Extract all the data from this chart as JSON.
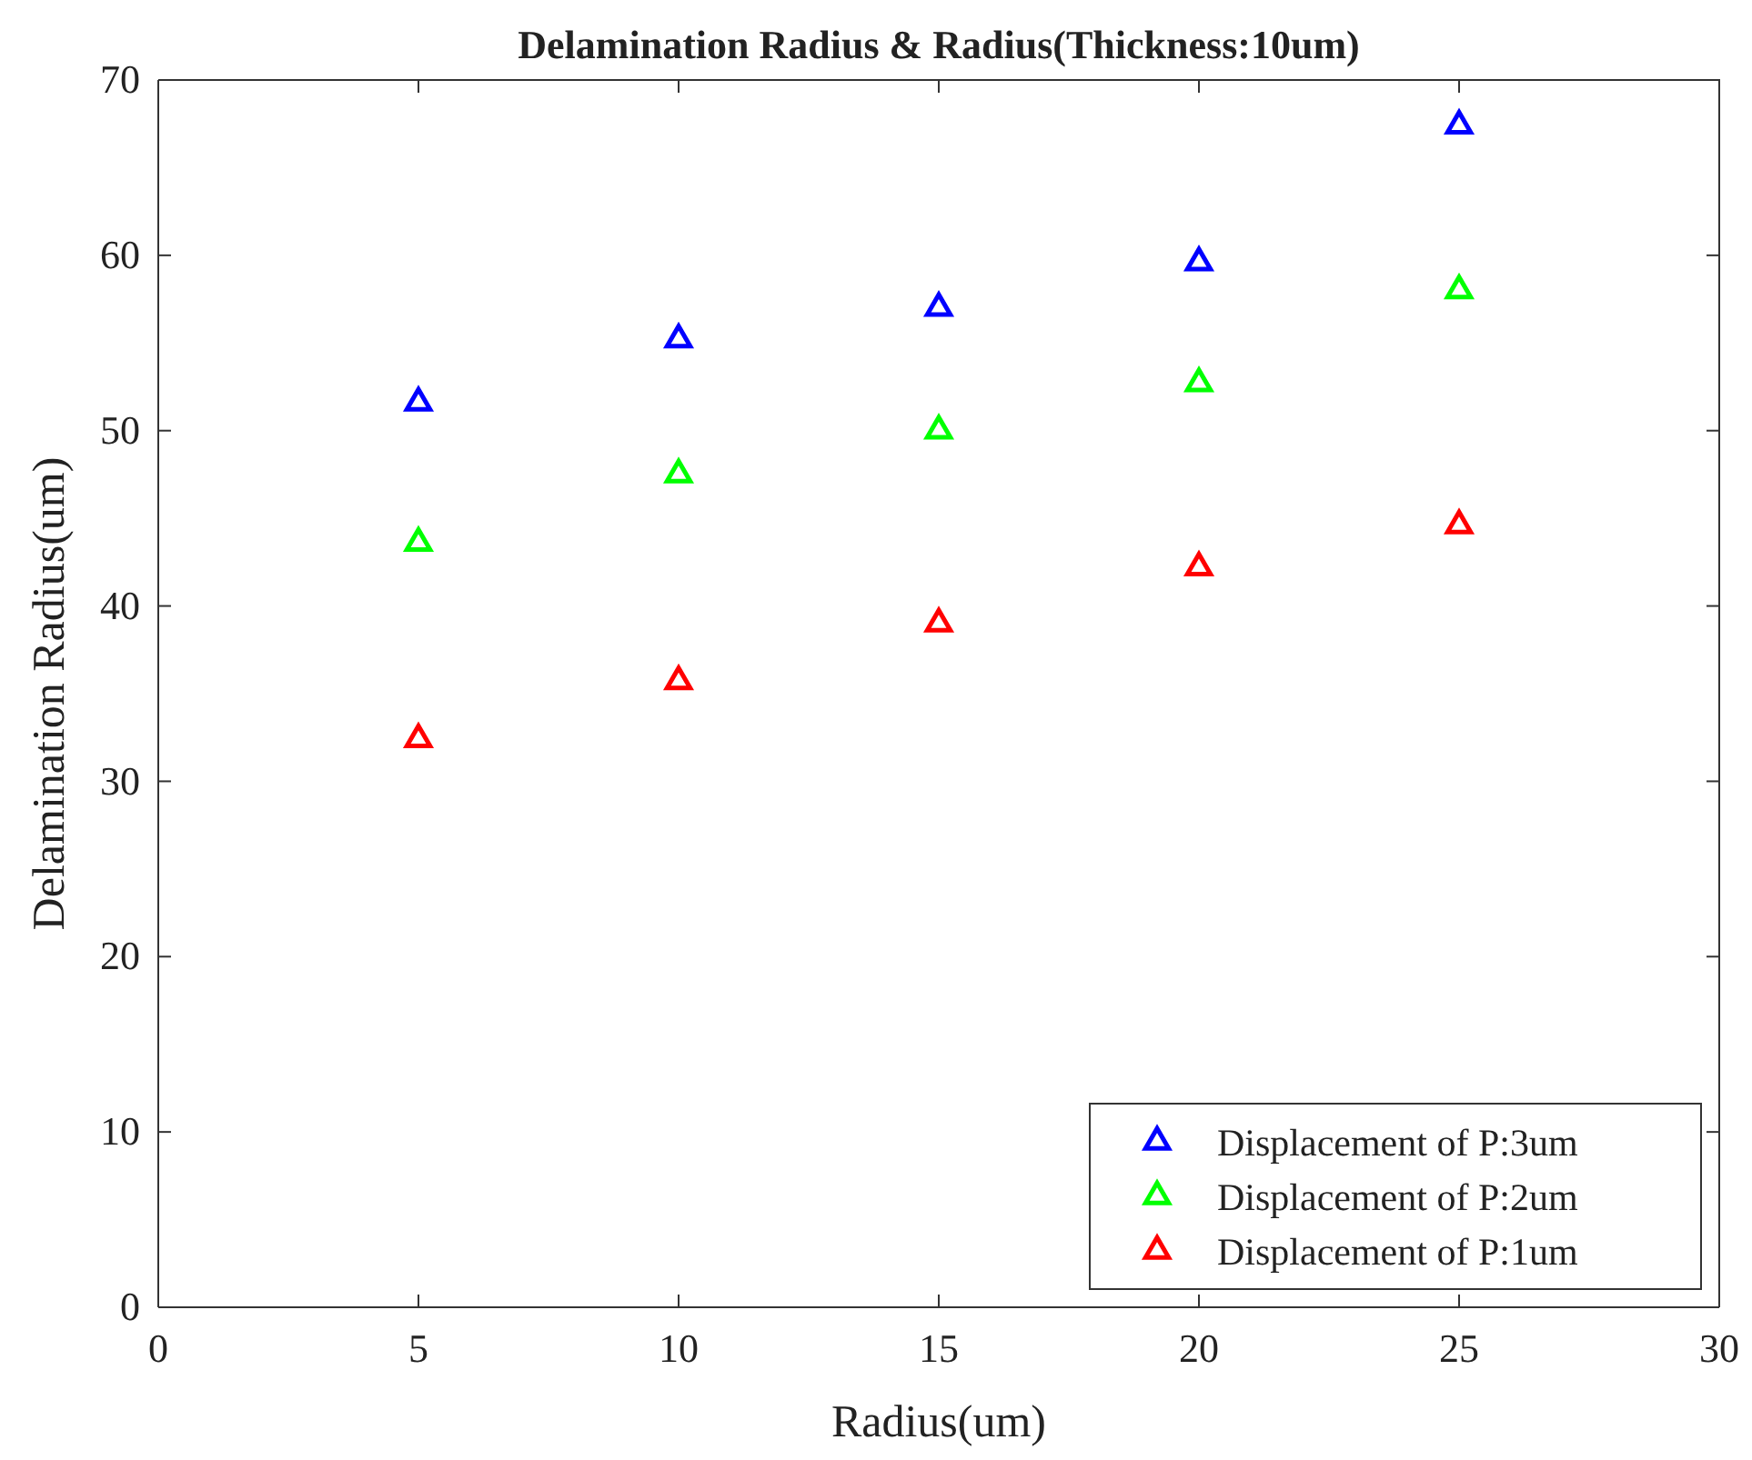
{
  "chart_data": {
    "type": "scatter",
    "title": "Delamination Radius & Radius(Thickness:10um)",
    "xlabel": "Radius(um)",
    "ylabel": "Delamination Radius(um)",
    "x": [
      5,
      10,
      15,
      20,
      25
    ],
    "series": [
      {
        "name": "Displacement of P:3um",
        "color": "#0000ff",
        "values": [
          51.6,
          55.2,
          57.0,
          59.6,
          67.4
        ]
      },
      {
        "name": "Displacement of P:2um",
        "color": "#00ff00",
        "values": [
          43.6,
          47.5,
          50.0,
          52.7,
          58.0
        ]
      },
      {
        "name": "Displacement of P:1um",
        "color": "#ff0000",
        "values": [
          32.4,
          35.7,
          39.0,
          42.2,
          44.6
        ]
      }
    ],
    "xlim": [
      0,
      30
    ],
    "xticks": [
      0,
      5,
      10,
      15,
      20,
      25,
      30
    ],
    "ylim": [
      0,
      70
    ],
    "yticks": [
      0,
      10,
      20,
      30,
      40,
      50,
      60,
      70
    ],
    "grid": false,
    "legend": "bottom right",
    "marker": "triangle"
  }
}
